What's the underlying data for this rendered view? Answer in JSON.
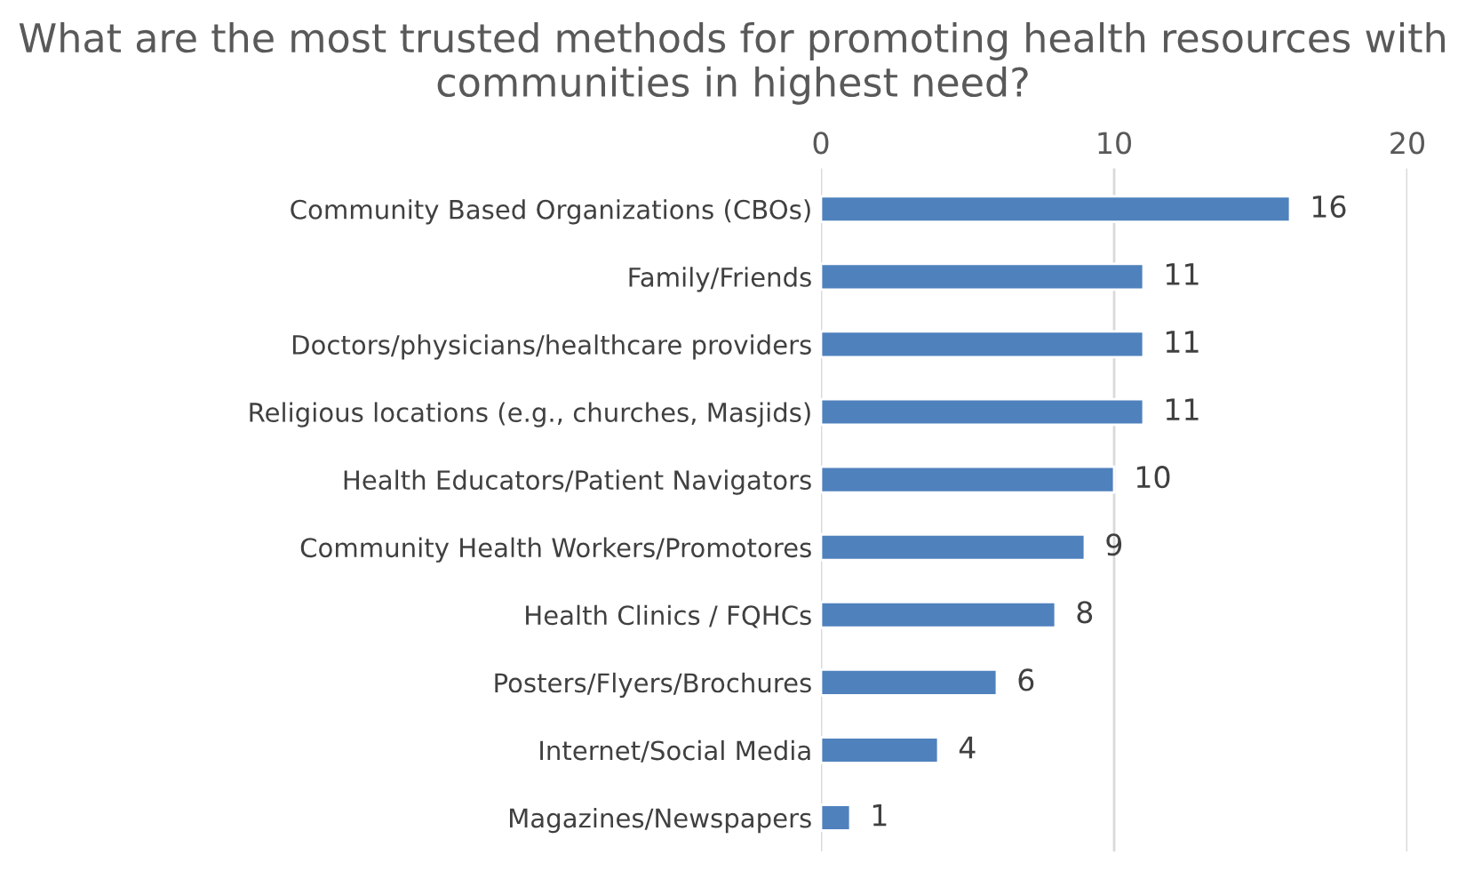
{
  "chart_data": {
    "type": "bar",
    "orientation": "horizontal",
    "title": "What are the most trusted methods for promoting health resources with communities in highest need?",
    "categories": [
      "Community Based Organizations (CBOs)",
      "Family/Friends",
      "Doctors/physicians/healthcare providers",
      "Religious locations (e.g., churches, Masjids)",
      "Health Educators/Patient Navigators",
      "Community Health Workers/Promotores",
      "Health Clinics / FQHCs",
      "Posters/Flyers/Brochures",
      "Internet/Social Media",
      "Magazines/Newspapers"
    ],
    "values": [
      16,
      11,
      11,
      11,
      10,
      9,
      8,
      6,
      4,
      1
    ],
    "color": "#4f81bd",
    "xlim": [
      0,
      20
    ],
    "xticks": [
      0,
      10,
      20
    ],
    "grid": "x",
    "data_labels": true
  }
}
